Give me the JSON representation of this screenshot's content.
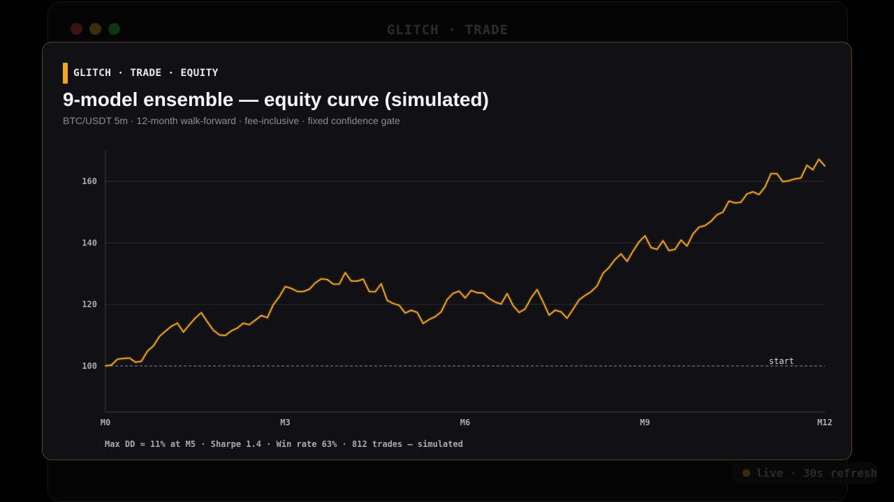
{
  "window": {
    "title": "GLITCH · TRADE"
  },
  "status": {
    "live_label": "live · 30s refresh"
  },
  "card": {
    "brand": "GLITCH · TRADE · EQUITY",
    "title": "9-model ensemble — equity curve (simulated)",
    "subtitle": "BTC/USDT 5m · 12-month walk-forward · fee-inclusive · fixed confidence gate",
    "footer": "Max DD ≈ 11% at M5 · Sharpe 1.4 · Win rate 63% · 812 trades — simulated"
  },
  "colors": {
    "accent": "#f5a524",
    "background": "#101015",
    "border": "#5a4418"
  },
  "chart_data": {
    "type": "line",
    "title": "9-model ensemble — equity curve (simulated)",
    "xlabel": "",
    "ylabel": "",
    "xlim": [
      0,
      12
    ],
    "ylim": [
      85,
      170
    ],
    "x_ticks": [
      {
        "value": 0,
        "label": "M0"
      },
      {
        "value": 3,
        "label": "M3"
      },
      {
        "value": 6,
        "label": "M6"
      },
      {
        "value": 9,
        "label": "M9"
      },
      {
        "value": 12,
        "label": "M12"
      }
    ],
    "y_ticks": [
      100,
      120,
      140,
      160
    ],
    "grid": "horizontal",
    "baseline": {
      "value": 100,
      "label": "start",
      "style": "dashed"
    },
    "series": [
      {
        "color": "#f5a524",
        "points": [
          [
            0,
            100
          ],
          [
            0.1,
            100.3
          ],
          [
            0.2,
            102.2
          ],
          [
            0.3,
            102.4
          ],
          [
            0.4,
            102.6
          ],
          [
            0.5,
            101.2
          ],
          [
            0.6,
            101.5
          ],
          [
            0.7,
            104.8
          ],
          [
            0.8,
            106.5
          ],
          [
            0.9,
            109.6
          ],
          [
            1.0,
            111.3
          ],
          [
            1.1,
            112.9
          ],
          [
            1.2,
            113.9
          ],
          [
            1.3,
            111.0
          ],
          [
            1.4,
            113.4
          ],
          [
            1.5,
            115.6
          ],
          [
            1.6,
            117.3
          ],
          [
            1.7,
            114.3
          ],
          [
            1.8,
            111.6
          ],
          [
            1.9,
            110.1
          ],
          [
            2.0,
            109.9
          ],
          [
            2.1,
            111.4
          ],
          [
            2.2,
            112.3
          ],
          [
            2.3,
            113.9
          ],
          [
            2.4,
            113.4
          ],
          [
            2.5,
            114.9
          ],
          [
            2.6,
            116.4
          ],
          [
            2.7,
            115.7
          ],
          [
            2.8,
            119.9
          ],
          [
            2.9,
            122.5
          ],
          [
            3.0,
            125.8
          ],
          [
            3.1,
            125.2
          ],
          [
            3.2,
            124.2
          ],
          [
            3.3,
            124.2
          ],
          [
            3.4,
            124.9
          ],
          [
            3.5,
            127.0
          ],
          [
            3.6,
            128.3
          ],
          [
            3.7,
            128.1
          ],
          [
            3.8,
            126.6
          ],
          [
            3.9,
            126.6
          ],
          [
            4.0,
            130.3
          ],
          [
            4.1,
            127.6
          ],
          [
            4.2,
            127.6
          ],
          [
            4.3,
            128.2
          ],
          [
            4.4,
            124.2
          ],
          [
            4.5,
            124.1
          ],
          [
            4.6,
            126.7
          ],
          [
            4.7,
            121.3
          ],
          [
            4.8,
            120.3
          ],
          [
            4.9,
            119.7
          ],
          [
            5.0,
            117.2
          ],
          [
            5.1,
            118.1
          ],
          [
            5.2,
            117.4
          ],
          [
            5.3,
            113.8
          ],
          [
            5.4,
            115.1
          ],
          [
            5.5,
            116.0
          ],
          [
            5.6,
            117.6
          ],
          [
            5.7,
            121.6
          ],
          [
            5.8,
            123.6
          ],
          [
            5.9,
            124.3
          ],
          [
            6.0,
            122.1
          ],
          [
            6.1,
            124.5
          ],
          [
            6.2,
            123.8
          ],
          [
            6.3,
            123.7
          ],
          [
            6.4,
            121.9
          ],
          [
            6.5,
            120.8
          ],
          [
            6.6,
            120.1
          ],
          [
            6.7,
            123.5
          ],
          [
            6.8,
            119.6
          ],
          [
            6.9,
            117.4
          ],
          [
            7.0,
            118.5
          ],
          [
            7.1,
            122.1
          ],
          [
            7.2,
            124.8
          ],
          [
            7.3,
            120.8
          ],
          [
            7.4,
            116.5
          ],
          [
            7.5,
            118.1
          ],
          [
            7.6,
            117.6
          ],
          [
            7.7,
            115.5
          ],
          [
            7.8,
            118.4
          ],
          [
            7.9,
            121.5
          ],
          [
            8.0,
            122.9
          ],
          [
            8.1,
            124.1
          ],
          [
            8.2,
            126.0
          ],
          [
            8.3,
            130.1
          ],
          [
            8.4,
            132.0
          ],
          [
            8.5,
            134.6
          ],
          [
            8.6,
            136.4
          ],
          [
            8.7,
            134.0
          ],
          [
            8.8,
            137.3
          ],
          [
            8.9,
            140.3
          ],
          [
            9.0,
            142.3
          ],
          [
            9.1,
            138.5
          ],
          [
            9.2,
            137.9
          ],
          [
            9.3,
            140.7
          ],
          [
            9.4,
            137.5
          ],
          [
            9.5,
            137.9
          ],
          [
            9.6,
            140.9
          ],
          [
            9.7,
            139.0
          ],
          [
            9.8,
            142.9
          ],
          [
            9.9,
            145.1
          ],
          [
            10.0,
            145.6
          ],
          [
            10.1,
            147.0
          ],
          [
            10.2,
            149.1
          ],
          [
            10.3,
            150.0
          ],
          [
            10.4,
            153.6
          ],
          [
            10.5,
            153.0
          ],
          [
            10.6,
            153.2
          ],
          [
            10.7,
            155.9
          ],
          [
            10.8,
            156.6
          ],
          [
            10.9,
            155.7
          ],
          [
            11.0,
            158.1
          ],
          [
            11.1,
            162.5
          ],
          [
            11.2,
            162.5
          ],
          [
            11.3,
            159.9
          ],
          [
            11.4,
            160.2
          ],
          [
            11.5,
            160.8
          ],
          [
            11.6,
            161.1
          ],
          [
            11.7,
            165.2
          ],
          [
            11.8,
            163.8
          ],
          [
            11.9,
            167.2
          ],
          [
            12.0,
            165.0
          ]
        ]
      }
    ]
  }
}
